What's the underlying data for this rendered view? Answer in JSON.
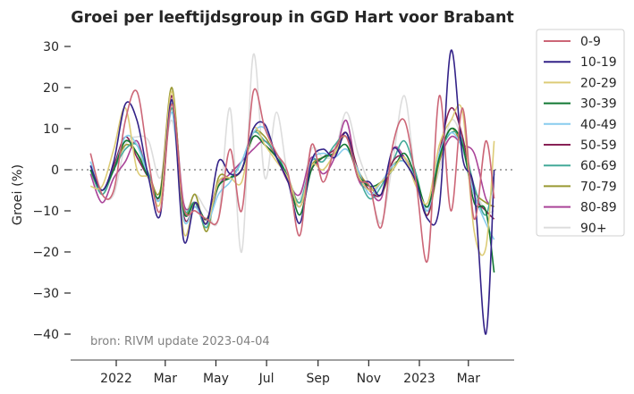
{
  "chart_data": {
    "type": "line",
    "title": "Groei per leeftijdsgroup in GGD Hart voor Brabant",
    "ylabel": "Groei (%)",
    "xlabel": "",
    "annotation": "bron: RIVM update 2023-04-04",
    "ylim": [
      -46,
      35
    ],
    "xlim": [
      "2021-11-08",
      "2023-04-24"
    ],
    "yticks": [
      30,
      20,
      10,
      0,
      -10,
      -20,
      -30,
      -40
    ],
    "xticks": [
      {
        "date": "2022-01-01",
        "label": "2022"
      },
      {
        "date": "2022-03-01",
        "label": "Mar"
      },
      {
        "date": "2022-05-01",
        "label": "May"
      },
      {
        "date": "2022-07-01",
        "label": "Jul"
      },
      {
        "date": "2022-09-01",
        "label": "Sep"
      },
      {
        "date": "2022-11-01",
        "label": "Nov"
      },
      {
        "date": "2023-01-01",
        "label": "2023"
      },
      {
        "date": "2023-03-01",
        "label": "Mar"
      }
    ],
    "reference_line": 0,
    "grid": false,
    "legend_position": "outside-right",
    "x": [
      "2021-12-01",
      "2021-12-15",
      "2021-12-29",
      "2022-01-12",
      "2022-01-26",
      "2022-02-09",
      "2022-02-23",
      "2022-03-09",
      "2022-03-23",
      "2022-04-06",
      "2022-04-20",
      "2022-05-04",
      "2022-05-18",
      "2022-06-01",
      "2022-06-15",
      "2022-06-29",
      "2022-07-13",
      "2022-07-27",
      "2022-08-10",
      "2022-08-24",
      "2022-09-07",
      "2022-09-21",
      "2022-10-05",
      "2022-10-19",
      "2022-11-02",
      "2022-11-16",
      "2022-11-30",
      "2022-12-14",
      "2022-12-28",
      "2023-01-11",
      "2023-01-25",
      "2023-02-08",
      "2023-02-22",
      "2023-03-08",
      "2023-03-22",
      "2023-04-01"
    ],
    "series": [
      {
        "name": "0-9",
        "color": "#cc6677",
        "values": [
          4,
          -6,
          -5,
          12,
          19,
          2,
          -10,
          16,
          -9,
          -10,
          -12,
          -12,
          5,
          -10,
          19,
          10,
          4,
          -1,
          -16,
          6,
          -3,
          5,
          8,
          -2,
          -4,
          -14,
          6,
          12,
          -3,
          -22,
          18,
          -10,
          15,
          -12,
          7,
          -7
        ]
      },
      {
        "name": "10-19",
        "color": "#332288",
        "values": [
          1,
          -5,
          2,
          16,
          12,
          -2,
          -11,
          17,
          -17,
          -8,
          -13,
          2,
          -1,
          0,
          10,
          11,
          3,
          -3,
          -13,
          2,
          5,
          3,
          9,
          -2,
          -3,
          -6,
          5,
          2,
          -3,
          -12,
          -9,
          29,
          3,
          -5,
          -40,
          0
        ]
      },
      {
        "name": "20-29",
        "color": "#ddcc77",
        "values": [
          -4,
          -4,
          5,
          15,
          0,
          -2,
          -8,
          19,
          -15,
          -8,
          -13,
          -3,
          -2,
          -3,
          10,
          6,
          2,
          -2,
          -9,
          1,
          0,
          4,
          8,
          -1,
          -5,
          -3,
          0,
          3,
          -4,
          -8,
          6,
          12,
          14,
          -15,
          -19,
          7
        ]
      },
      {
        "name": "30-39",
        "color": "#117733",
        "values": [
          0,
          -5,
          0,
          7,
          4,
          -2,
          -6,
          16,
          -10,
          -8,
          -12,
          -4,
          -2,
          0,
          8,
          6,
          3,
          -2,
          -11,
          0,
          3,
          4,
          6,
          -1,
          -4,
          -3,
          0,
          4,
          -2,
          -9,
          3,
          10,
          6,
          -8,
          -10,
          -25
        ]
      },
      {
        "name": "40-49",
        "color": "#88ccee",
        "values": [
          2,
          -5,
          0,
          8,
          6,
          -2,
          -7,
          14,
          -12,
          -9,
          -13,
          -6,
          -3,
          2,
          9,
          10,
          3,
          -2,
          -9,
          2,
          4,
          3,
          5,
          0,
          -6,
          -3,
          1,
          2,
          -2,
          -10,
          4,
          9,
          5,
          -6,
          -13,
          -17
        ]
      },
      {
        "name": "50-59",
        "color": "#882255",
        "values": [
          1,
          -5,
          1,
          8,
          3,
          -2,
          -6,
          18,
          -11,
          -9,
          -12,
          -3,
          -2,
          0,
          8,
          6,
          3,
          -3,
          -9,
          0,
          3,
          5,
          9,
          0,
          -5,
          -6,
          2,
          3,
          -3,
          -11,
          4,
          15,
          8,
          -6,
          -10,
          -12
        ]
      },
      {
        "name": "60-69",
        "color": "#44aa99",
        "values": [
          0,
          -6,
          0,
          5,
          6,
          -1,
          -7,
          15,
          -9,
          -8,
          -14,
          -3,
          -2,
          2,
          9,
          7,
          4,
          -2,
          -8,
          2,
          2,
          6,
          8,
          -1,
          -7,
          -4,
          2,
          7,
          -1,
          -10,
          3,
          9,
          7,
          -4,
          -11,
          -1
        ]
      },
      {
        "name": "70-79",
        "color": "#999933",
        "values": [
          0,
          -6,
          0,
          6,
          4,
          -1,
          -5,
          20,
          -10,
          -6,
          -15,
          -2,
          -2,
          0,
          9,
          8,
          3,
          -2,
          -8,
          1,
          3,
          4,
          9,
          0,
          -4,
          -6,
          1,
          2,
          -2,
          -11,
          2,
          10,
          5,
          -5,
          -8,
          -9
        ]
      },
      {
        "name": "80-89",
        "color": "#aa4499",
        "values": [
          -1,
          -8,
          -2,
          2,
          7,
          -2,
          -6,
          18,
          -8,
          -8,
          -13,
          -4,
          -1,
          2,
          5,
          7,
          3,
          -3,
          -6,
          3,
          -1,
          3,
          12,
          -2,
          -5,
          -7,
          5,
          3,
          -3,
          -9,
          2,
          8,
          6,
          4,
          -7,
          -9
        ]
      },
      {
        "name": "90+",
        "color": "#dddddd",
        "values": [
          2,
          -6,
          -6,
          6,
          8,
          7,
          -2,
          12,
          -9,
          -6,
          -10,
          -12,
          15,
          -20,
          28,
          -2,
          14,
          -2,
          -7,
          5,
          3,
          4,
          14,
          4,
          -4,
          -13,
          2,
          18,
          -3,
          -9,
          0,
          12,
          7,
          -4,
          -10,
          -10
        ]
      }
    ]
  }
}
